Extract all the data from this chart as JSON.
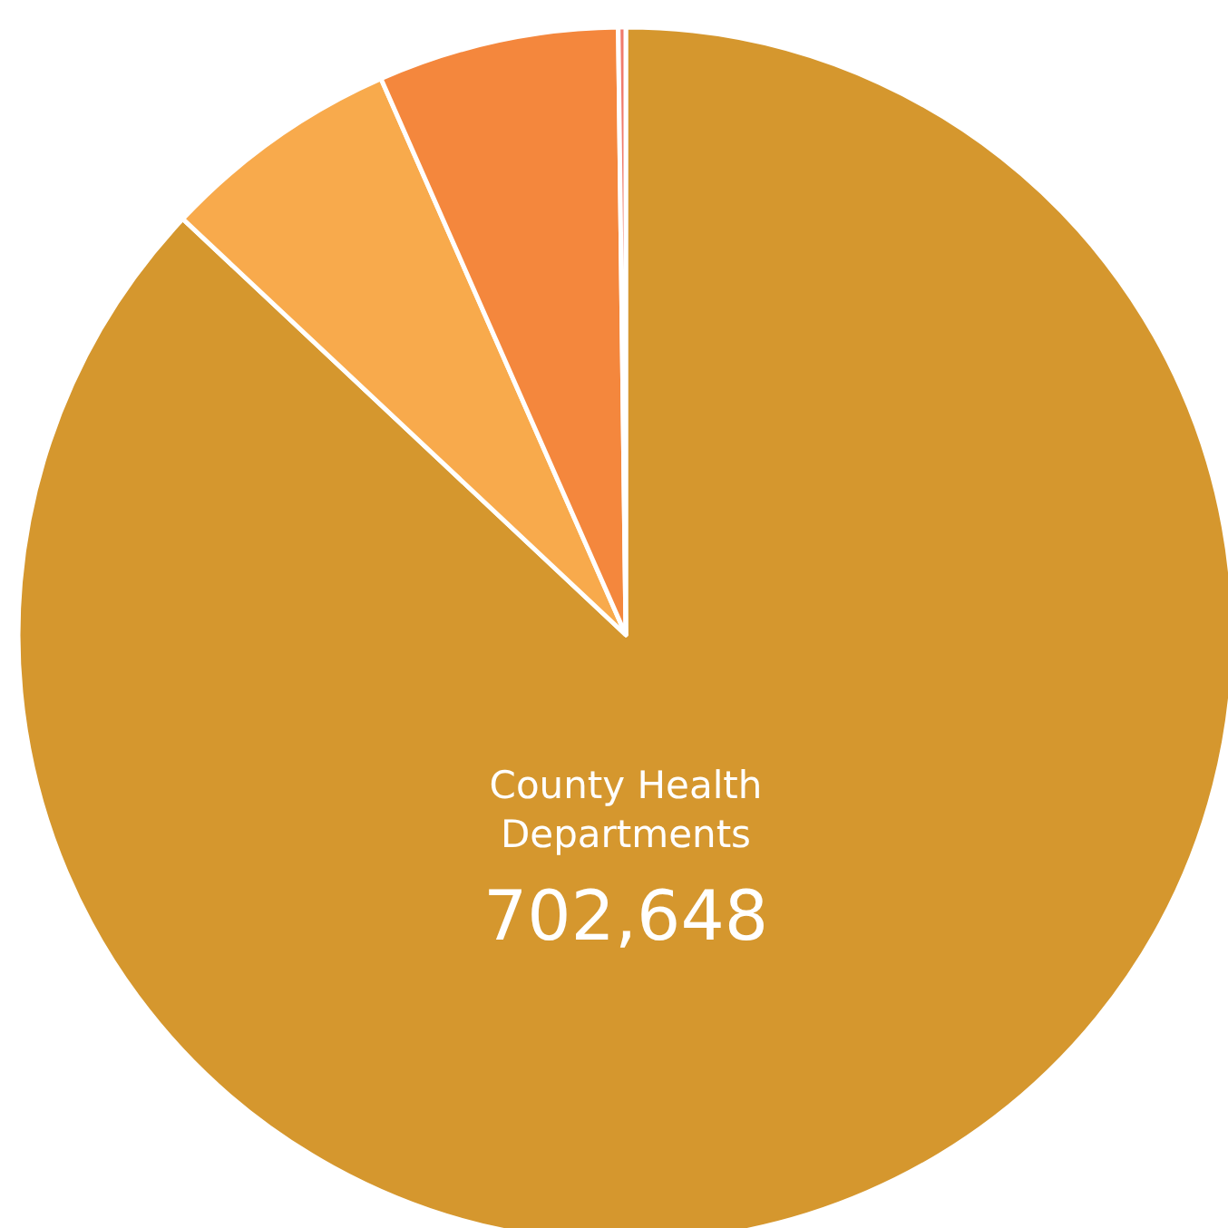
{
  "chart_data": {
    "type": "pie",
    "categories": [
      "County Health Departments",
      null,
      null,
      null
    ],
    "values": [
      702648,
      51700,
      51700,
      1600
    ],
    "value_labels": [
      "702,648",
      null,
      null,
      null
    ],
    "colors": [
      "#d5972e",
      "#f8aa4c",
      "#f4873d",
      "#f07b6c"
    ]
  }
}
